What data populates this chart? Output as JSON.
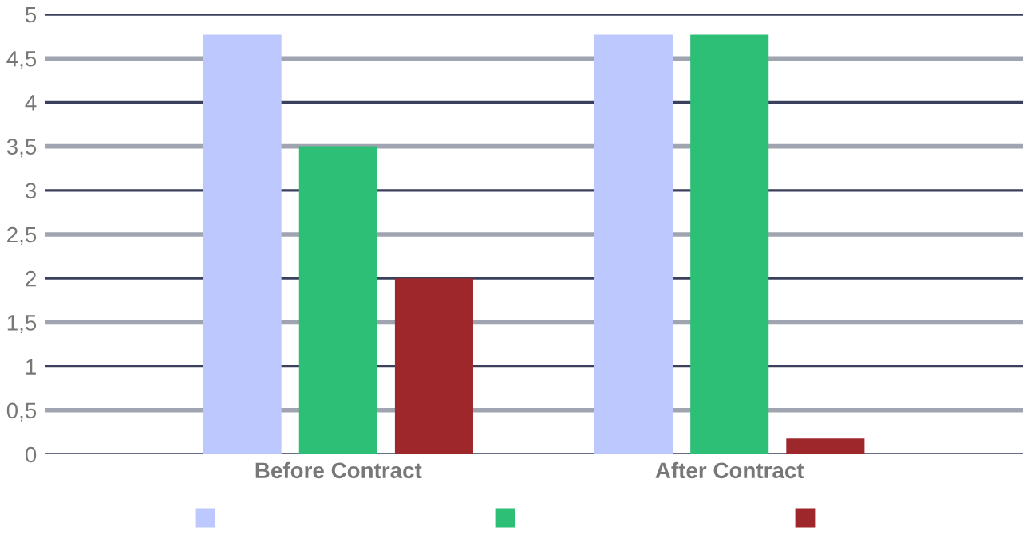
{
  "chart_data": {
    "type": "bar",
    "categories": [
      "Before Contract",
      "After Contract"
    ],
    "series": [
      {
        "color": "#bdc8fe",
        "values": [
          4.77,
          4.77
        ]
      },
      {
        "color": "#2ebf76",
        "values": [
          3.5,
          4.77
        ]
      },
      {
        "color": "#9e272c",
        "values": [
          2,
          0.18
        ]
      }
    ],
    "ylim": [
      0,
      5
    ],
    "yticks": [
      0,
      {
        "value": 0.5,
        "label": "0,5"
      },
      1,
      {
        "value": 1.5,
        "label": "1,5"
      },
      2,
      {
        "value": 2.5,
        "label": "2,5"
      },
      3,
      {
        "value": 3.5,
        "label": "3,5"
      },
      4,
      {
        "value": 4.5,
        "label": "4,5"
      },
      5
    ],
    "grid": "y"
  }
}
